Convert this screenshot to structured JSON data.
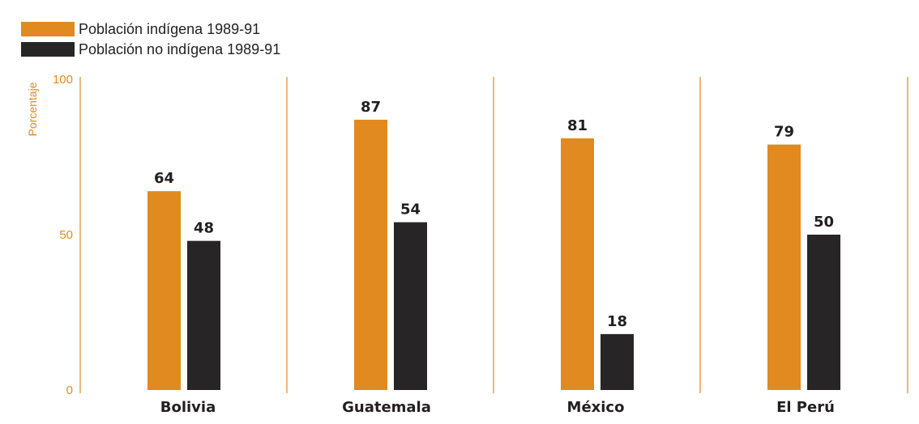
{
  "chart_data": {
    "type": "bar",
    "categories": [
      "Bolivia",
      "Guatemala",
      "México",
      "El Perú"
    ],
    "series": [
      {
        "name": "Población indígena 1989-91",
        "values": [
          64,
          87,
          81,
          79
        ],
        "color": "#e08a20"
      },
      {
        "name": "Población no indígena 1989-91",
        "values": [
          48,
          54,
          18,
          50
        ],
        "color": "#282526"
      }
    ],
    "ylabel": "Porcentaje",
    "ylim": [
      0,
      100
    ],
    "yticks": [
      0,
      50,
      100
    ],
    "legend_position": "top-left",
    "grid": false,
    "divider_color": "#e08a20"
  }
}
